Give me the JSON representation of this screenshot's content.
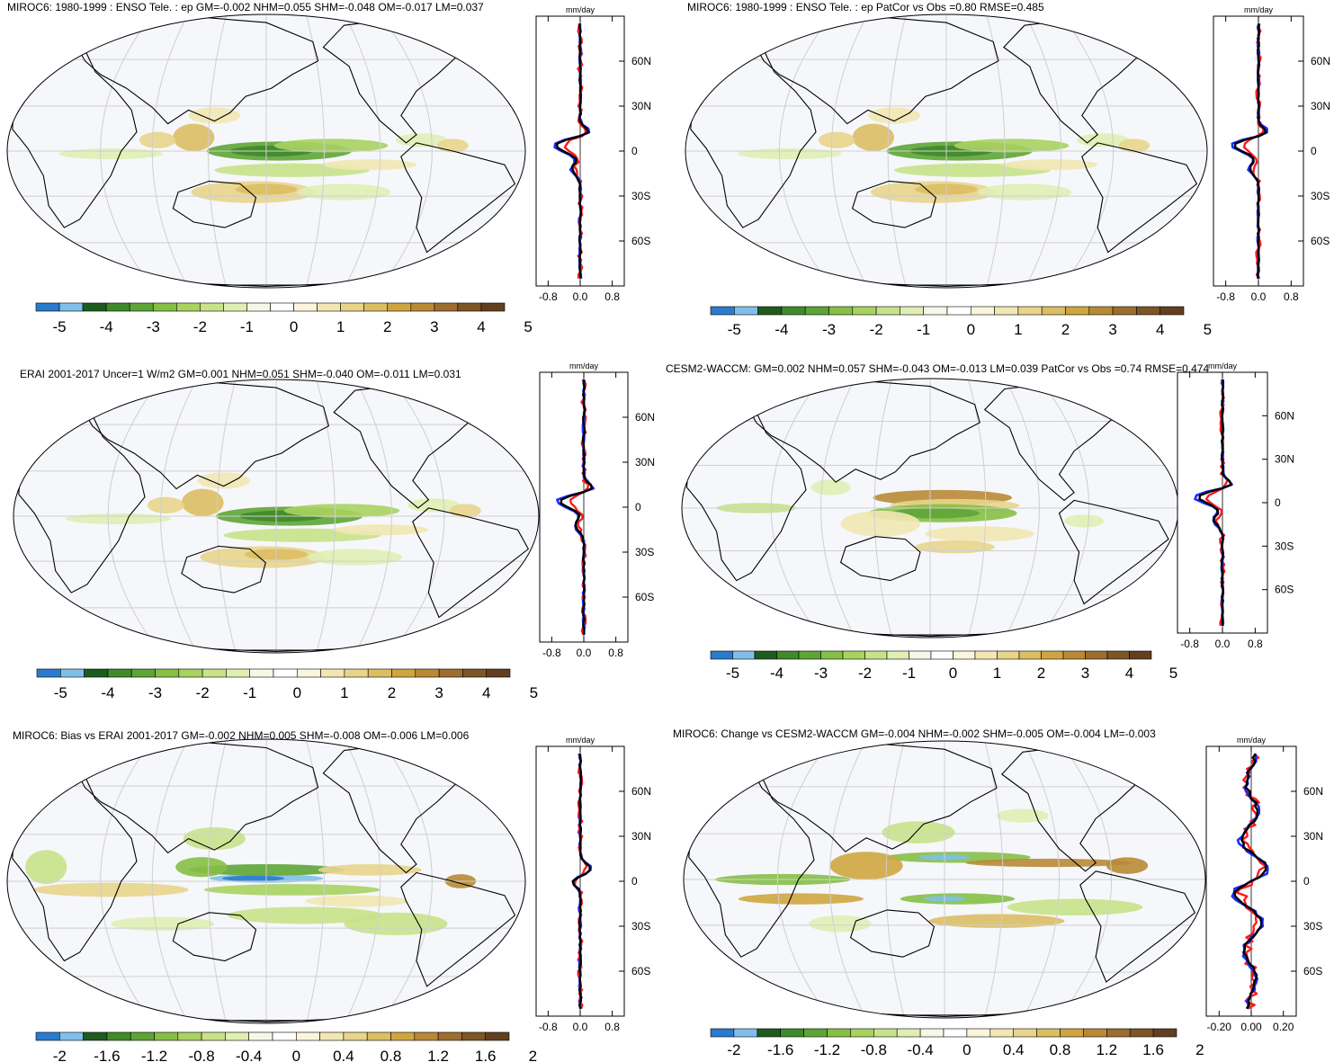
{
  "figure": {
    "panels": [
      {
        "title": "MIROC6: 1980-1999 : ENSO Tele. : ep GM=-0.002 NHM=0.055 SHM=-0.048 OM=-0.017 LM=0.037",
        "colorbar_labels": [
          "-5",
          "-4",
          "-3",
          "-2",
          "-1",
          "0",
          "1",
          "2",
          "3",
          "4",
          "5"
        ],
        "profile": {
          "unit": "mm/day",
          "xticks": [
            "-0.8",
            "0.0",
            "0.8"
          ],
          "yticks": [
            "60N",
            "30N",
            "0",
            "30S",
            "60S"
          ]
        }
      },
      {
        "title": "MIROC6: 1980-1999 : ENSO Tele. : ep PatCor vs Obs =0.80 RMSE=0.485",
        "colorbar_labels": [
          "-5",
          "-4",
          "-3",
          "-2",
          "-1",
          "0",
          "1",
          "2",
          "3",
          "4",
          "5"
        ],
        "profile": {
          "unit": "mm/day",
          "xticks": [
            "-0.8",
            "0.0",
            "0.8"
          ],
          "yticks": [
            "60N",
            "30N",
            "0",
            "30S",
            "60S"
          ]
        }
      },
      {
        "title": "ERAI 2001-2017 Uncer=1 W/m2 GM=0.001 NHM=0.051 SHM=-0.040 OM=-0.011 LM=0.031",
        "colorbar_labels": [
          "-5",
          "-4",
          "-3",
          "-2",
          "-1",
          "0",
          "1",
          "2",
          "3",
          "4",
          "5"
        ],
        "profile": {
          "unit": "mm/day",
          "xticks": [
            "-0.8",
            "0.0",
            "0.8"
          ],
          "yticks": [
            "60N",
            "30N",
            "0",
            "30S",
            "60S"
          ]
        }
      },
      {
        "title": "CESM2-WACCM: GM=0.002 NHM=0.057 SHM=-0.043 OM=-0.013 LM=0.039 PatCor vs Obs =0.74 RMSE=0.474",
        "colorbar_labels": [
          "-5",
          "-4",
          "-3",
          "-2",
          "-1",
          "0",
          "1",
          "2",
          "3",
          "4",
          "5"
        ],
        "profile": {
          "unit": "mm/day",
          "xticks": [
            "-0.8",
            "0.0",
            "0.8"
          ],
          "yticks": [
            "60N",
            "30N",
            "0",
            "30S",
            "60S"
          ]
        }
      },
      {
        "title": "MIROC6: Bias vs ERAI 2001-2017 GM=-0.002 NHM=0.005 SHM=-0.008 OM=-0.006 LM=0.006",
        "colorbar_labels": [
          "-2",
          "-1.6",
          "-1.2",
          "-0.8",
          "-0.4",
          "0",
          "0.4",
          "0.8",
          "1.2",
          "1.6",
          "2"
        ],
        "profile": {
          "unit": "mm/day",
          "xticks": [
            "-0.8",
            "0.0",
            "0.8"
          ],
          "yticks": [
            "60N",
            "30N",
            "0",
            "30S",
            "60S"
          ]
        }
      },
      {
        "title": "MIROC6: Change vs CESM2-WACCM GM=-0.004 NHM=-0.002 SHM=-0.005 OM=-0.004 LM=-0.003",
        "colorbar_labels": [
          "-2",
          "-1.6",
          "-1.2",
          "-0.8",
          "-0.4",
          "0",
          "0.4",
          "0.8",
          "1.2",
          "1.6",
          "2"
        ],
        "profile": {
          "unit": "mm/day",
          "xticks": [
            "-0.20",
            "0.00",
            "0.20"
          ],
          "yticks": [
            "60N",
            "30N",
            "0",
            "30S",
            "60S"
          ]
        }
      }
    ],
    "colors": {
      "colorbar": [
        "#2b7bcd",
        "#7fbfe9",
        "#1f5b1f",
        "#3f8a2a",
        "#5ea436",
        "#86bf46",
        "#a9d25f",
        "#c8e28a",
        "#e0eeb4",
        "#f4f8e6",
        "#ffffff",
        "#fbf5dc",
        "#f2e7b3",
        "#e8d48b",
        "#dbbe63",
        "#cfa540",
        "#b98936",
        "#9c6d2e",
        "#7e5526",
        "#62401f"
      ],
      "ocean": "#f6f7fb",
      "land_outline": "#000000",
      "grid": "#cfcfcf",
      "line_model": "#ff1a1a",
      "line_obs": "#1a2cff",
      "line_other": "#000000"
    }
  }
}
